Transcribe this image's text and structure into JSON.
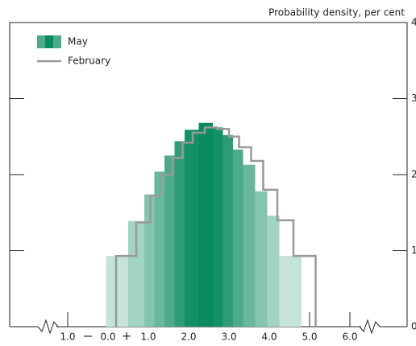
{
  "chart_data": {
    "type": "histogram",
    "y_label": "Probability density, per cent",
    "xlim": [
      -2.44,
      7.42
    ],
    "ylim": [
      0,
      4
    ],
    "yticks": [
      0,
      1,
      2,
      3,
      4
    ],
    "xticks": [
      {
        "value": -1,
        "label": "1.0"
      },
      {
        "value": 0,
        "label": "0.0"
      },
      {
        "value": 1,
        "label": "1.0"
      },
      {
        "value": 2,
        "label": "2.0"
      },
      {
        "value": 3,
        "label": "3.0"
      },
      {
        "value": 4,
        "label": "4.0"
      },
      {
        "value": 5,
        "label": "5.0"
      },
      {
        "value": 6,
        "label": "6.0"
      }
    ],
    "x_sign_labels": [
      {
        "value": -0.5,
        "label": "−"
      },
      {
        "value": 0.46,
        "label": "+"
      }
    ],
    "legend": "upper left",
    "series": [
      {
        "name": "May",
        "style": "filled",
        "colors": [
          "#c5e3d8",
          "#a3d3c1",
          "#86c5ad",
          "#6ab89b",
          "#4eab89",
          "#2e9c77",
          "#139068",
          "#0a8a60",
          "#139068",
          "#2e9c77",
          "#4eab89",
          "#6ab89b",
          "#86c5ad",
          "#a3d3c1",
          "#c5e3d8"
        ],
        "bins": [
          -0.05,
          0.5,
          0.9,
          1.15,
          1.4,
          1.65,
          1.9,
          2.25,
          2.6,
          2.85,
          3.1,
          3.35,
          3.65,
          3.95,
          4.25,
          4.8
        ],
        "values": [
          0.93,
          1.39,
          1.74,
          2.04,
          2.25,
          2.44,
          2.59,
          2.68,
          2.62,
          2.52,
          2.33,
          2.13,
          1.78,
          1.46,
          0.93
        ]
      },
      {
        "name": "February",
        "style": "outline",
        "color": "#999999",
        "bins": [
          0.2,
          0.7,
          1.05,
          1.3,
          1.6,
          1.85,
          2.1,
          2.4,
          2.7,
          3.0,
          3.25,
          3.55,
          3.85,
          4.2,
          4.6,
          5.15
        ],
        "values": [
          0.93,
          1.37,
          1.72,
          2.0,
          2.22,
          2.42,
          2.55,
          2.62,
          2.6,
          2.5,
          2.36,
          2.18,
          1.8,
          1.4,
          0.93
        ]
      }
    ]
  }
}
